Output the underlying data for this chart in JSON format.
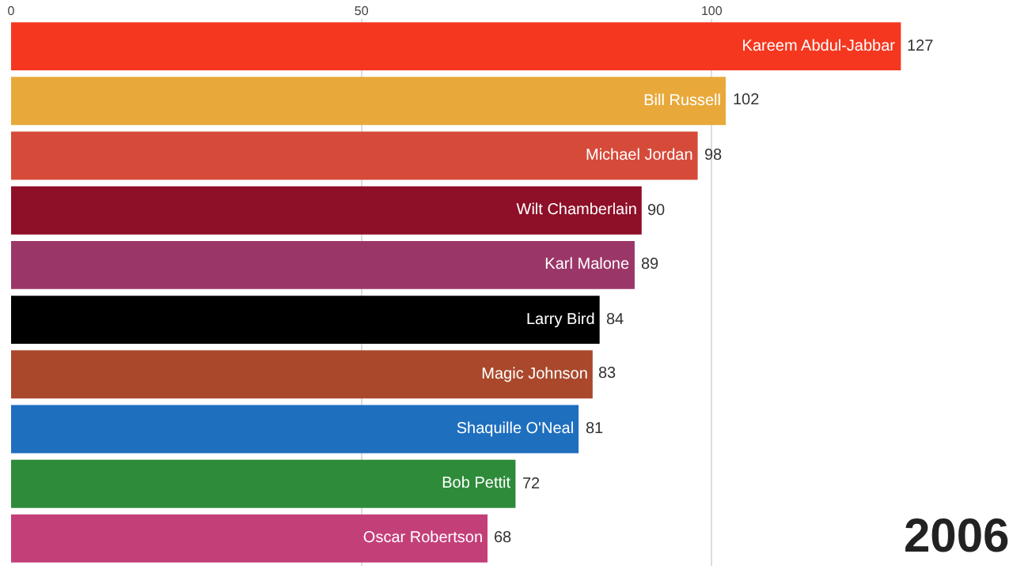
{
  "chart_data": {
    "type": "bar",
    "orientation": "horizontal",
    "categories": [
      "Kareem Abdul-Jabbar",
      "Bill Russell",
      "Michael Jordan",
      "Wilt Chamberlain",
      "Karl Malone",
      "Larry Bird",
      "Magic Johnson",
      "Shaquille O'Neal",
      "Bob Pettit",
      "Oscar Robertson"
    ],
    "values": [
      127,
      102,
      98,
      90,
      89,
      84,
      83,
      81,
      72,
      68
    ],
    "colors": [
      "#f5371f",
      "#e8a93a",
      "#d64a3a",
      "#8e0f28",
      "#9b3768",
      "#000000",
      "#a9482b",
      "#1f6fbf",
      "#2e8b3a",
      "#c33f78"
    ],
    "xlim": [
      0,
      143
    ],
    "xticks": [
      0,
      50,
      100
    ],
    "grid": "x",
    "tick_labels": "x",
    "data_labels": true,
    "annotations": [
      "2006"
    ]
  }
}
